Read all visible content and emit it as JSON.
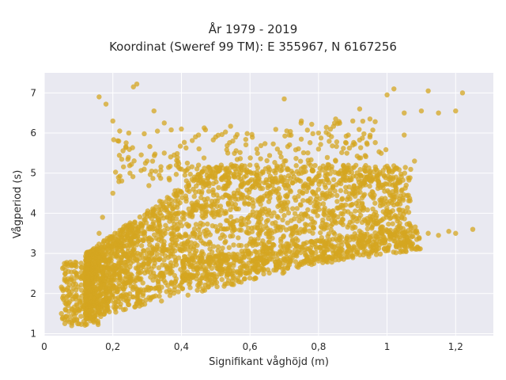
{
  "chart_data": {
    "type": "scatter",
    "title": "År 1979 - 2019",
    "subtitle": "Koordinat (Sweref 99 TM): E 355967, N 6167256",
    "xlabel": "Signifikant våghöjd (m)",
    "ylabel": "Vågperiod (s)",
    "xlim": [
      0,
      1.31
    ],
    "ylim": [
      0.95,
      7.5
    ],
    "xticks": [
      0,
      0.2,
      0.4,
      0.6,
      0.8,
      1.0,
      1.2
    ],
    "xtick_labels": [
      "0",
      "0,2",
      "0,4",
      "0,6",
      "0,8",
      "1",
      "1,2"
    ],
    "yticks": [
      1,
      2,
      3,
      4,
      5,
      6,
      7
    ],
    "ytick_labels": [
      "1",
      "2",
      "3",
      "4",
      "5",
      "6",
      "7"
    ],
    "grid": true,
    "background": "#e9e9f1",
    "marker_color": "#d4a520",
    "series": [
      {
        "values_summary": "dense cloud of wave height vs wave period observations",
        "points": [
          [
            0.27,
            7.22
          ],
          [
            0.26,
            7.15
          ],
          [
            0.16,
            6.9
          ],
          [
            0.18,
            6.72
          ],
          [
            0.2,
            6.3
          ],
          [
            0.22,
            6.05
          ],
          [
            0.32,
            6.55
          ],
          [
            0.35,
            6.25
          ],
          [
            0.4,
            6.1
          ],
          [
            0.45,
            5.95
          ],
          [
            0.5,
            5.9
          ],
          [
            0.55,
            5.8
          ],
          [
            0.68,
            5.6
          ],
          [
            0.7,
            6.85
          ],
          [
            0.75,
            6.3
          ],
          [
            0.8,
            6.0
          ],
          [
            0.85,
            6.35
          ],
          [
            0.9,
            6.3
          ],
          [
            0.92,
            6.6
          ],
          [
            0.95,
            6.35
          ],
          [
            1.0,
            6.95
          ],
          [
            1.02,
            7.1
          ],
          [
            1.05,
            6.5
          ],
          [
            1.1,
            6.55
          ],
          [
            1.12,
            7.05
          ],
          [
            1.15,
            6.5
          ],
          [
            1.2,
            6.55
          ],
          [
            1.22,
            7.0
          ],
          [
            1.05,
            5.95
          ],
          [
            1.08,
            5.3
          ],
          [
            1.0,
            4.05
          ],
          [
            1.12,
            3.5
          ],
          [
            1.15,
            3.45
          ],
          [
            1.18,
            3.55
          ],
          [
            1.2,
            3.5
          ],
          [
            1.25,
            3.6
          ],
          [
            1.03,
            3.65
          ],
          [
            1.05,
            3.5
          ],
          [
            0.95,
            3.4
          ],
          [
            0.05,
            1.5
          ],
          [
            0.06,
            1.25
          ],
          [
            0.08,
            1.2
          ],
          [
            0.12,
            1.25
          ],
          [
            0.1,
            1.9
          ],
          [
            0.13,
            2.5
          ],
          [
            0.15,
            3.0
          ],
          [
            0.16,
            3.5
          ],
          [
            0.17,
            3.9
          ],
          [
            0.2,
            4.5
          ],
          [
            0.25,
            5.0
          ],
          [
            0.3,
            5.3
          ],
          [
            0.35,
            5.5
          ],
          [
            0.4,
            5.1
          ],
          [
            0.45,
            5.2
          ],
          [
            0.5,
            5.0
          ],
          [
            0.6,
            5.2
          ],
          [
            0.7,
            5.3
          ],
          [
            0.8,
            5.6
          ],
          [
            0.85,
            5.3
          ],
          [
            0.9,
            5.7
          ],
          [
            0.95,
            5.9
          ],
          [
            0.75,
            5.0
          ],
          [
            0.6,
            4.6
          ],
          [
            0.7,
            4.7
          ],
          [
            0.8,
            4.8
          ],
          [
            0.9,
            4.6
          ]
        ]
      }
    ]
  }
}
